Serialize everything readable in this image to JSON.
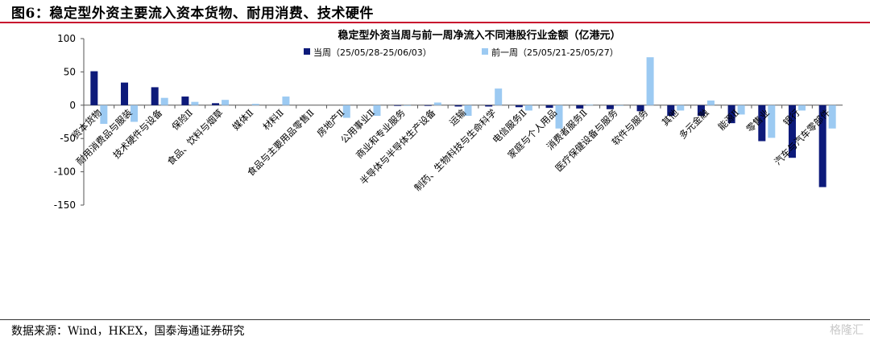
{
  "figure_title": "图6：稳定型外资主要流入资本货物、耐用消费、技术硬件",
  "source": "数据来源：Wind，HKEX，国泰海通证券研究",
  "watermark": "格隆汇",
  "colors": {
    "current": "#0d1a7a",
    "previous": "#9ccaf2",
    "accent": "#c8102e"
  },
  "chart_data": {
    "type": "bar",
    "title": "稳定型外资当周与前一周净流入不同港股行业金额（亿港元）",
    "legend_position": "top",
    "ylim": [
      -150,
      100
    ],
    "yticks": [
      100,
      50,
      0,
      -50,
      -100,
      -150
    ],
    "grid": false,
    "categories": [
      "资本货物",
      "耐用消费品与服装",
      "技术硬件与设备",
      "保险Ⅱ",
      "食品、饮料与烟草",
      "媒体Ⅱ",
      "材料Ⅱ",
      "食品与主要用品零售Ⅱ",
      "房地产Ⅱ",
      "公用事业Ⅱ",
      "商业和专业服务",
      "半导体与半导体生产设备",
      "运输",
      "制药、生物科技与生命科学",
      "电信服务Ⅱ",
      "家庭与个人用品",
      "消费者服务Ⅱ",
      "医疗保健设备与服务",
      "软件与服务",
      "其他",
      "多元金融",
      "能源Ⅱ",
      "零售业",
      "银行",
      "汽车与汽车零部件"
    ],
    "series": [
      {
        "name": "当周（25/05/28-25/06/03）",
        "values": [
          51,
          34,
          27,
          13,
          3,
          0,
          0,
          0,
          0,
          0,
          -1,
          -1,
          -2,
          -2,
          -3,
          -4,
          -5,
          -6,
          -9,
          -16,
          -16,
          -27,
          -54,
          -79,
          -123
        ]
      },
      {
        "name": "前一周（25/05/21-25/05/27）",
        "values": [
          -28,
          -25,
          11,
          5,
          8,
          2,
          13,
          0,
          -19,
          -16,
          -1,
          4,
          -16,
          25,
          -8,
          -35,
          1,
          -1,
          72,
          -8,
          7,
          -14,
          -49,
          -8,
          -35
        ]
      }
    ]
  }
}
